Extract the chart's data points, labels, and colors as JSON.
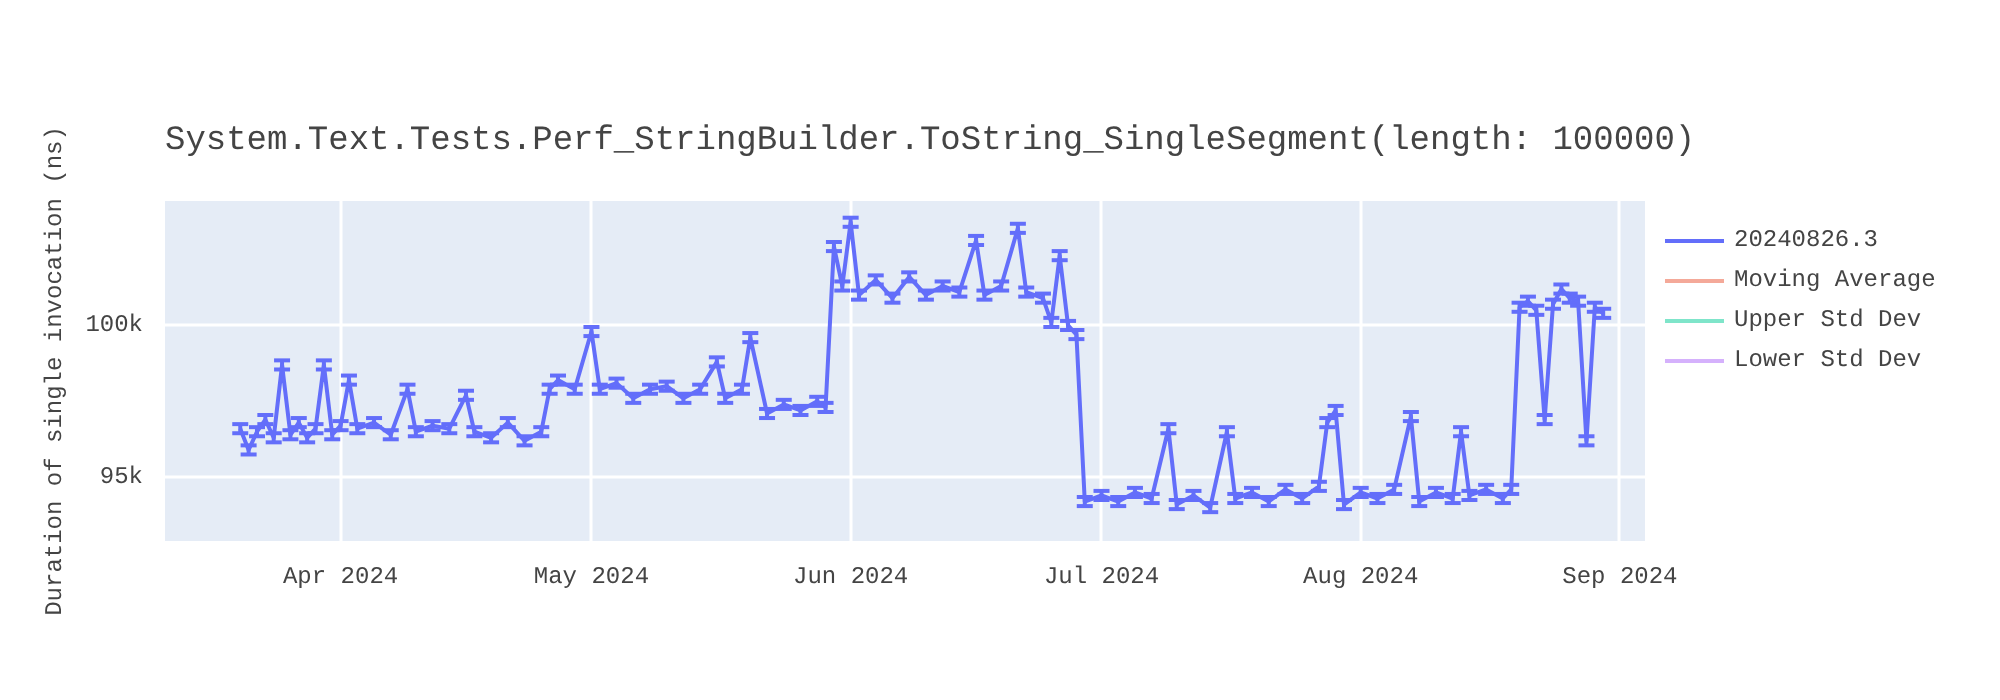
{
  "chart_data": {
    "type": "line",
    "title": "System.Text.Tests.Perf_StringBuilder.ToString_SingleSegment(length: 100000)",
    "ylabel": "Duration of single invocation (ns)",
    "x": [
      "2024-03-20",
      "2024-03-21",
      "2024-03-22",
      "2024-03-23",
      "2024-03-24",
      "2024-03-25",
      "2024-03-26",
      "2024-03-27",
      "2024-03-28",
      "2024-03-29",
      "2024-03-30",
      "2024-03-31",
      "2024-04-01",
      "2024-04-02",
      "2024-04-03",
      "2024-04-05",
      "2024-04-07",
      "2024-04-09",
      "2024-04-10",
      "2024-04-12",
      "2024-04-14",
      "2024-04-16",
      "2024-04-17",
      "2024-04-19",
      "2024-04-21",
      "2024-04-23",
      "2024-04-25",
      "2024-04-26",
      "2024-04-27",
      "2024-04-29",
      "2024-05-01",
      "2024-05-02",
      "2024-05-04",
      "2024-05-06",
      "2024-05-08",
      "2024-05-10",
      "2024-05-12",
      "2024-05-14",
      "2024-05-16",
      "2024-05-17",
      "2024-05-19",
      "2024-05-20",
      "2024-05-22",
      "2024-05-24",
      "2024-05-26",
      "2024-05-28",
      "2024-05-29",
      "2024-05-30",
      "2024-05-31",
      "2024-06-01",
      "2024-06-02",
      "2024-06-04",
      "2024-06-06",
      "2024-06-08",
      "2024-06-10",
      "2024-06-12",
      "2024-06-14",
      "2024-06-16",
      "2024-06-17",
      "2024-06-19",
      "2024-06-21",
      "2024-06-22",
      "2024-06-24",
      "2024-06-25",
      "2024-06-26",
      "2024-06-27",
      "2024-06-28",
      "2024-06-29",
      "2024-07-01",
      "2024-07-03",
      "2024-07-05",
      "2024-07-07",
      "2024-07-09",
      "2024-07-10",
      "2024-07-12",
      "2024-07-14",
      "2024-07-16",
      "2024-07-17",
      "2024-07-19",
      "2024-07-21",
      "2024-07-23",
      "2024-07-25",
      "2024-07-27",
      "2024-07-28",
      "2024-07-29",
      "2024-07-30",
      "2024-08-01",
      "2024-08-03",
      "2024-08-05",
      "2024-08-07",
      "2024-08-08",
      "2024-08-10",
      "2024-08-12",
      "2024-08-13",
      "2024-08-14",
      "2024-08-16",
      "2024-08-18",
      "2024-08-19",
      "2024-08-20",
      "2024-08-21",
      "2024-08-22",
      "2024-08-23",
      "2024-08-24",
      "2024-08-25",
      "2024-08-26",
      "2024-08-27",
      "2024-08-28",
      "2024-08-29",
      "2024-08-30"
    ],
    "series": [
      {
        "name": "20240826.3",
        "color": "#636efa",
        "values": [
          96600,
          95900,
          96500,
          96900,
          96300,
          98700,
          96400,
          96800,
          96300,
          96600,
          98700,
          96400,
          96700,
          98200,
          96600,
          96800,
          96400,
          97900,
          96500,
          96700,
          96600,
          97700,
          96500,
          96300,
          96800,
          96200,
          96500,
          97900,
          98200,
          97900,
          99800,
          97900,
          98100,
          97600,
          97900,
          98000,
          97600,
          97900,
          98800,
          97600,
          97900,
          99600,
          97100,
          97400,
          97200,
          97500,
          97300,
          102600,
          101300,
          103400,
          101000,
          101500,
          100900,
          101600,
          101000,
          101300,
          101100,
          102800,
          101000,
          101300,
          103200,
          101100,
          100900,
          100100,
          102300,
          100000,
          99700,
          94200,
          94400,
          94200,
          94500,
          94300,
          96600,
          94100,
          94400,
          94000,
          96500,
          94300,
          94500,
          94200,
          94600,
          94300,
          94700,
          96800,
          97200,
          94100,
          94500,
          94300,
          94600,
          97000,
          94200,
          94500,
          94300,
          96500,
          94400,
          94600,
          94300,
          94600,
          100600,
          100800,
          100500,
          96900,
          100700,
          101200,
          100900,
          100800,
          96200,
          100600,
          100400
        ],
        "errors": [
          150,
          150,
          150,
          150,
          150,
          150,
          150,
          150,
          150,
          150,
          150,
          150,
          150,
          150,
          150,
          150,
          150,
          150,
          150,
          150,
          150,
          150,
          150,
          150,
          150,
          150,
          150,
          150,
          150,
          150,
          150,
          150,
          150,
          150,
          150,
          150,
          150,
          150,
          150,
          150,
          150,
          150,
          150,
          150,
          150,
          150,
          150,
          150,
          150,
          150,
          150,
          150,
          150,
          150,
          150,
          150,
          150,
          150,
          150,
          150,
          150,
          150,
          150,
          150,
          150,
          150,
          150,
          150,
          150,
          150,
          150,
          150,
          150,
          150,
          150,
          150,
          150,
          150,
          150,
          150,
          150,
          150,
          150,
          150,
          150,
          150,
          150,
          150,
          150,
          150,
          150,
          150,
          150,
          150,
          150,
          150,
          150,
          150,
          150,
          150,
          150,
          150,
          150,
          150,
          150,
          150,
          150,
          150,
          150
        ]
      },
      {
        "name": "Moving Average",
        "color": "#f4a999",
        "values": [
          null,
          null,
          null,
          null,
          null,
          null,
          null,
          null,
          null,
          null,
          null,
          null,
          null,
          null,
          null,
          null,
          null,
          null,
          null,
          null,
          null,
          null,
          null,
          null,
          null,
          null,
          null,
          null,
          null,
          null,
          null,
          null,
          null,
          null,
          null,
          null,
          null,
          null,
          null,
          null,
          null,
          null,
          null,
          null,
          null,
          null,
          null,
          null,
          null,
          null,
          null,
          null,
          null,
          null,
          null,
          null,
          null,
          null,
          null,
          null,
          null,
          null,
          null,
          null,
          null,
          null,
          null,
          null,
          null,
          null,
          null,
          null,
          null,
          null,
          null,
          null,
          null,
          null,
          null,
          null,
          null,
          null,
          null,
          null,
          null,
          null,
          null,
          null,
          null,
          null,
          null,
          null,
          null,
          null,
          null,
          null,
          null,
          null,
          null,
          null,
          null,
          null,
          null,
          null,
          null,
          null,
          null,
          null,
          null
        ]
      },
      {
        "name": "Upper Std Dev",
        "color": "#7fe5ca",
        "values": [
          null,
          null,
          null,
          null,
          null,
          null,
          null,
          null,
          null,
          null,
          null,
          null,
          null,
          null,
          null,
          null,
          null,
          null,
          null,
          null,
          null,
          null,
          null,
          null,
          null,
          null,
          null,
          null,
          null,
          null,
          null,
          null,
          null,
          null,
          null,
          null,
          null,
          null,
          null,
          null,
          null,
          null,
          null,
          null,
          null,
          null,
          null,
          null,
          null,
          null,
          null,
          null,
          null,
          null,
          null,
          null,
          null,
          null,
          null,
          null,
          null,
          null,
          null,
          null,
          null,
          null,
          null,
          null,
          null,
          null,
          null,
          null,
          null,
          null,
          null,
          null,
          null,
          null,
          null,
          null,
          null,
          null,
          null,
          null,
          null,
          null,
          null,
          null,
          null,
          null,
          null,
          null,
          null,
          null,
          null,
          null,
          null,
          null,
          null,
          null,
          null,
          null,
          null,
          null,
          null,
          null,
          null,
          null,
          null
        ]
      },
      {
        "name": "Lower Std Dev",
        "color": "#d5b1fc",
        "values": [
          null,
          null,
          null,
          null,
          null,
          null,
          null,
          null,
          null,
          null,
          null,
          null,
          null,
          null,
          null,
          null,
          null,
          null,
          null,
          null,
          null,
          null,
          null,
          null,
          null,
          null,
          null,
          null,
          null,
          null,
          null,
          null,
          null,
          null,
          null,
          null,
          null,
          null,
          null,
          null,
          null,
          null,
          null,
          null,
          null,
          null,
          null,
          null,
          null,
          null,
          null,
          null,
          null,
          null,
          null,
          null,
          null,
          null,
          null,
          null,
          null,
          null,
          null,
          null,
          null,
          null,
          null,
          null,
          null,
          null,
          null,
          null,
          null,
          null,
          null,
          null,
          null,
          null,
          null,
          null,
          null,
          null,
          null,
          null,
          null,
          null,
          null,
          null,
          null,
          null,
          null,
          null,
          null,
          null,
          null,
          null,
          null,
          null,
          null,
          null,
          null,
          null,
          null,
          null,
          null,
          null,
          null,
          null,
          null
        ]
      }
    ],
    "xlim": [
      "2024-03-11",
      "2024-09-04"
    ],
    "xticks": [
      {
        "value": "2024-04-01",
        "label": "Apr 2024"
      },
      {
        "value": "2024-05-01",
        "label": "May 2024"
      },
      {
        "value": "2024-06-01",
        "label": "Jun 2024"
      },
      {
        "value": "2024-07-01",
        "label": "Jul 2024"
      },
      {
        "value": "2024-08-01",
        "label": "Aug 2024"
      },
      {
        "value": "2024-09-01",
        "label": "Sep 2024"
      }
    ],
    "ylim": [
      92900,
      104100
    ],
    "yticks": [
      {
        "value": 95000,
        "label": "95k"
      },
      {
        "value": 100000,
        "label": "100k"
      }
    ],
    "grid": true,
    "legend": "top right"
  }
}
